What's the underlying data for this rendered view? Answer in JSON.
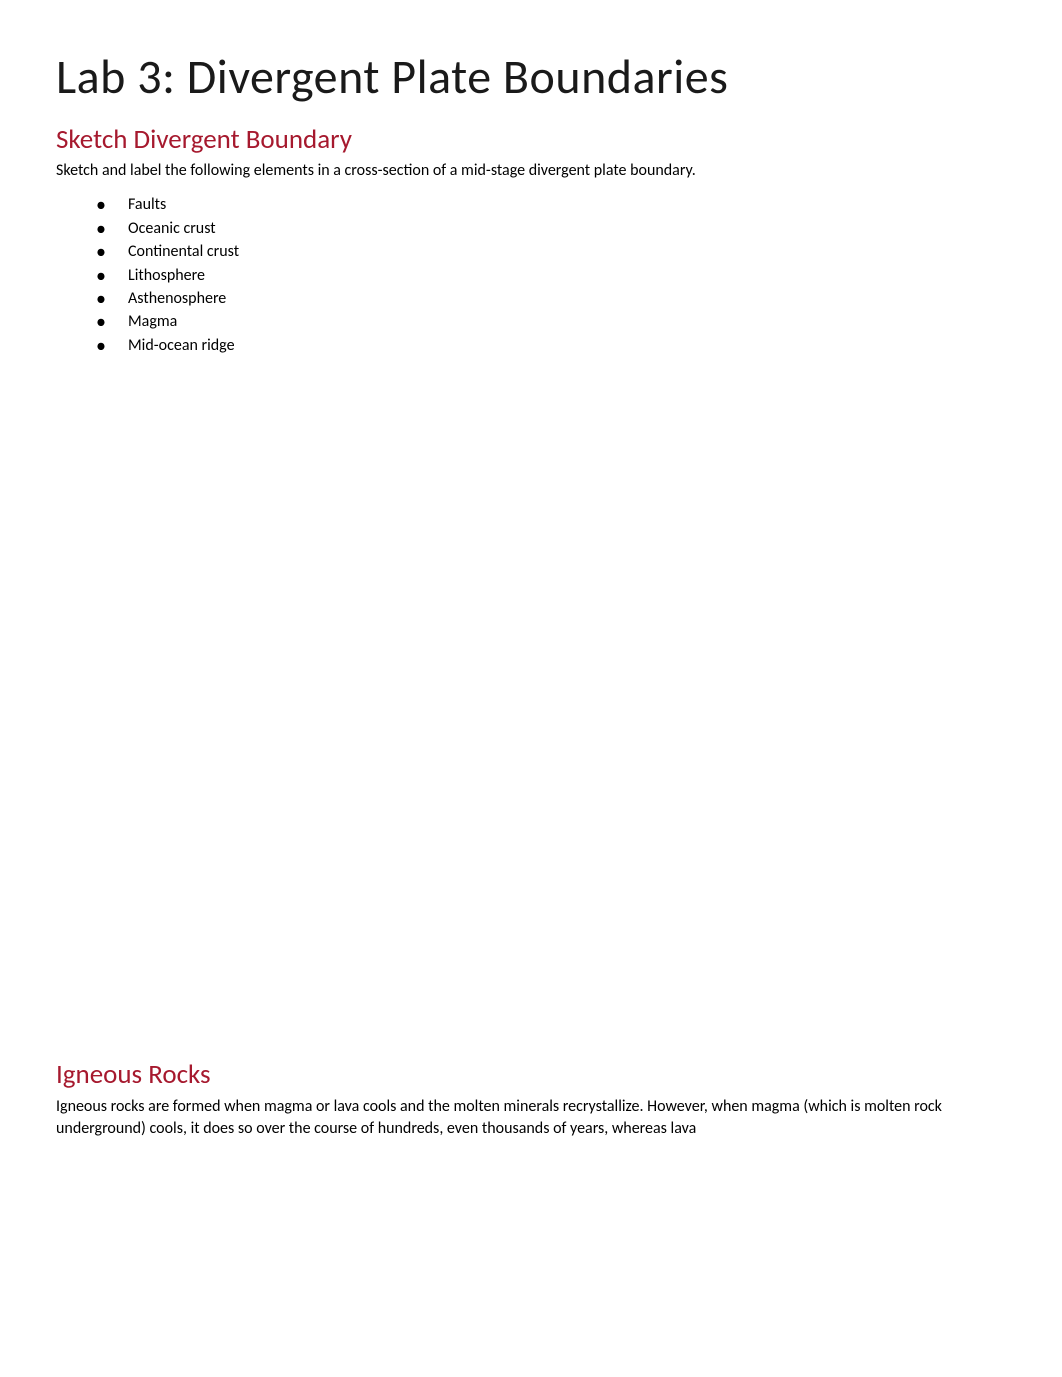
{
  "page": {
    "title": "Lab 3: Divergent Plate Boundaries",
    "background_color": "#ffffff",
    "title_color": "#1a1a1a",
    "title_fontsize": 48,
    "heading_color": "#a6192e",
    "heading_fontsize": 27,
    "body_color": "#000000",
    "body_fontsize": 16
  },
  "section1": {
    "heading": "Sketch Divergent Boundary",
    "intro": "Sketch and label the following elements in a cross-section of a mid-stage divergent plate boundary.",
    "items": [
      "Faults",
      "Oceanic crust",
      "Continental crust",
      "Lithosphere",
      "Asthenosphere",
      "Magma",
      "Mid-ocean ridge"
    ]
  },
  "section2": {
    "heading": "Igneous Rocks",
    "body": "Igneous rocks are formed when magma or lava cools and the molten minerals recrystallize. However, when magma (which is molten rock underground) cools, it does so over the course of hundreds, even thousands of years, whereas lava"
  }
}
